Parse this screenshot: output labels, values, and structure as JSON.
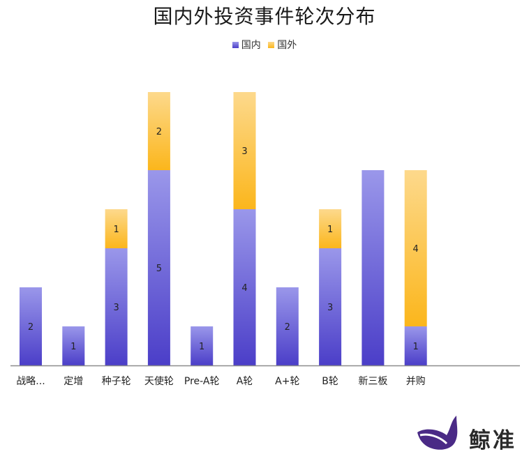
{
  "chart_data": {
    "type": "bar",
    "stacked": true,
    "title": "国内外投资事件轮次分布",
    "categories": [
      "战略...",
      "定增",
      "种子轮",
      "天使轮",
      "Pre-A轮",
      "A轮",
      "A+轮",
      "B轮",
      "新三板",
      "并购"
    ],
    "series": [
      {
        "name": "国内",
        "values": [
          2,
          1,
          3,
          5,
          1,
          4,
          2,
          3,
          5,
          1
        ],
        "color_top": "#9a97ea",
        "color_bottom": "#4b3ec8"
      },
      {
        "name": "国外",
        "values": [
          0,
          0,
          1,
          2,
          0,
          3,
          0,
          1,
          0,
          4
        ],
        "color_top": "#fdd98c",
        "color_bottom": "#fbb61c"
      }
    ],
    "ylim": [
      0,
      7
    ],
    "grid": false,
    "legend": "top-center",
    "xlabel": "",
    "ylabel": ""
  },
  "watermark": {
    "text": "鲸准",
    "logo_color": "#4a2a86",
    "icon": "whale-tail-logo"
  }
}
